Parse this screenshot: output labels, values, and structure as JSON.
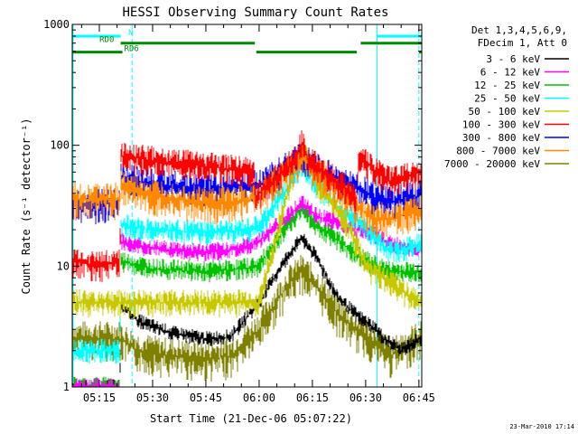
{
  "chart_data": {
    "type": "line",
    "title": "HESSI Observing Summary Count Rates",
    "xlabel": "Start Time (21-Dec-06 05:07:22)",
    "ylabel": "Count Rate (s⁻¹ detector⁻¹)",
    "yscale": "log",
    "ylim": [
      1,
      1000
    ],
    "xlim_minutes_after_0500": [
      7.37,
      105.8
    ],
    "x_ticks": [
      {
        "label": "05:15",
        "t": 15
      },
      {
        "label": "05:30",
        "t": 30
      },
      {
        "label": "05:45",
        "t": 45
      },
      {
        "label": "06:00",
        "t": 60
      },
      {
        "label": "06:15",
        "t": 75
      },
      {
        "label": "06:30",
        "t": 90
      },
      {
        "label": "06:45",
        "t": 105
      }
    ],
    "y_ticks": [
      {
        "label": "1",
        "v": 1
      },
      {
        "label": "10",
        "v": 10
      },
      {
        "label": "100",
        "v": 100
      },
      {
        "label": "1000",
        "v": 1000
      }
    ],
    "legend_header": [
      "Det 1,3,4,5,6,9,",
      "FDecim 1, Att 0"
    ],
    "legend_placement": "right",
    "timestamp": "23-Mar-2010 17:14",
    "flags": [
      {
        "label": "N",
        "color": "#00ffff",
        "segments": [
          [
            7.4,
            21.0
          ],
          [
            93.2,
            105.8
          ]
        ],
        "v": 800
      },
      {
        "label": "RD0",
        "color": "#008800",
        "segments": [
          [
            21.0,
            58.8
          ],
          [
            88.6,
            105.8
          ]
        ],
        "v": 700
      },
      {
        "label": "RD6",
        "color": "#008800",
        "segments": [
          [
            7.4,
            21.5
          ],
          [
            59.2,
            87.5
          ],
          [
            105.0,
            105.8
          ]
        ],
        "v": 590
      }
    ],
    "vlines": [
      {
        "t": 7.6,
        "color": "#00ffff",
        "style": "solid"
      },
      {
        "t": 24.2,
        "color": "#00ffff",
        "style": "dashed"
      },
      {
        "t": 93.2,
        "color": "#00ffff",
        "style": "solid"
      },
      {
        "t": 105.0,
        "color": "#00ffff",
        "style": "dashed"
      }
    ],
    "series": [
      {
        "name": "3 - 6 keV",
        "color": "#000000",
        "values": [
          [
            7.4,
            1.0
          ],
          [
            14,
            1.0
          ],
          [
            20.8,
            1.0
          ],
          [
            21,
            5.0
          ],
          [
            26,
            3.5
          ],
          [
            35,
            2.8
          ],
          [
            45,
            2.5
          ],
          [
            52,
            2.6
          ],
          [
            60,
            5.0
          ],
          [
            68,
            12.0
          ],
          [
            72,
            17.0
          ],
          [
            76,
            12.0
          ],
          [
            82,
            5.5
          ],
          [
            88,
            3.8
          ],
          [
            93,
            3.0
          ],
          [
            95,
            2.5
          ],
          [
            100,
            2.0
          ],
          [
            105,
            2.5
          ]
        ]
      },
      {
        "name": "6 - 12 keV",
        "color": "#ff00ff",
        "values": [
          [
            7.4,
            1.0
          ],
          [
            14,
            1.0
          ],
          [
            20.8,
            1.0
          ],
          [
            21,
            16.0
          ],
          [
            30,
            14.0
          ],
          [
            45,
            13.0
          ],
          [
            55,
            14.0
          ],
          [
            60,
            16.0
          ],
          [
            68,
            26.0
          ],
          [
            72,
            33.0
          ],
          [
            76,
            26.0
          ],
          [
            84,
            22.0
          ],
          [
            88,
            20.0
          ],
          [
            93,
            18.0
          ],
          [
            97,
            15.0
          ],
          [
            105,
            14.0
          ]
        ]
      },
      {
        "name": "12 - 25 keV",
        "color": "#00c000",
        "values": [
          [
            7.4,
            1.0
          ],
          [
            14,
            1.0
          ],
          [
            20.8,
            1.0
          ],
          [
            21,
            11.0
          ],
          [
            30,
            9.5
          ],
          [
            45,
            9.0
          ],
          [
            55,
            9.5
          ],
          [
            60,
            10.0
          ],
          [
            68,
            22.0
          ],
          [
            72,
            30.0
          ],
          [
            76,
            22.0
          ],
          [
            84,
            15.0
          ],
          [
            88,
            12.0
          ],
          [
            93,
            10.0
          ],
          [
            97,
            9.0
          ],
          [
            105,
            9.0
          ]
        ]
      },
      {
        "name": "25 - 50 keV",
        "color": "#00ffff",
        "values": [
          [
            7.4,
            2.0
          ],
          [
            14,
            2.0
          ],
          [
            20.8,
            2.0
          ],
          [
            21,
            22.0
          ],
          [
            30,
            20.0
          ],
          [
            45,
            19.0
          ],
          [
            55,
            19.5
          ],
          [
            60,
            21.0
          ],
          [
            68,
            45.0
          ],
          [
            72,
            70.0
          ],
          [
            76,
            45.0
          ],
          [
            84,
            28.0
          ],
          [
            88,
            24.0
          ],
          [
            93,
            17.0
          ],
          [
            97,
            13.0
          ],
          [
            105,
            15.0
          ]
        ]
      },
      {
        "name": "50 - 100 keV",
        "color": "#c8c800",
        "values": [
          [
            7.4,
            5.0
          ],
          [
            20.8,
            5.0
          ],
          [
            60,
            5.0
          ],
          [
            68,
            40.0
          ],
          [
            72,
            105.0
          ],
          [
            76,
            50.0
          ],
          [
            84,
            25.0
          ],
          [
            90,
            10.0
          ],
          [
            105,
            5.0
          ]
        ]
      },
      {
        "name": "100 - 300 keV",
        "color": "#ff0000",
        "values": [
          [
            7.4,
            11.0
          ],
          [
            14,
            10.0
          ],
          [
            20.8,
            11.0
          ],
          [
            21,
            82.0
          ],
          [
            30,
            75.0
          ],
          [
            45,
            67.0
          ],
          [
            55,
            62.0
          ],
          [
            58.5,
            60.0
          ],
          [
            59,
            37.0
          ],
          [
            65,
            55.0
          ],
          [
            70,
            75.0
          ],
          [
            72,
            105.0
          ],
          [
            74,
            75.0
          ],
          [
            80,
            55.0
          ],
          [
            86,
            40.0
          ],
          [
            87.5,
            36.0
          ],
          [
            88,
            82.0
          ],
          [
            93,
            60.0
          ],
          [
            97,
            50.0
          ],
          [
            105,
            60.0
          ]
        ]
      },
      {
        "name": "300 - 800 keV",
        "color": "#0000ff",
        "values": [
          [
            7.4,
            33.0
          ],
          [
            14,
            32.0
          ],
          [
            20.8,
            33.0
          ],
          [
            21,
            55.0
          ],
          [
            30,
            48.0
          ],
          [
            45,
            43.0
          ],
          [
            55,
            46.0
          ],
          [
            60,
            47.0
          ],
          [
            66,
            60.0
          ],
          [
            72,
            80.0
          ],
          [
            78,
            60.0
          ],
          [
            84,
            47.0
          ],
          [
            88,
            45.0
          ],
          [
            93,
            36.0
          ],
          [
            97,
            34.0
          ],
          [
            105,
            38.0
          ]
        ]
      },
      {
        "name": "800 - 7000 keV",
        "color": "#ff8800",
        "values": [
          [
            7.4,
            36.0
          ],
          [
            14,
            35.0
          ],
          [
            20.8,
            36.0
          ],
          [
            21,
            45.0
          ],
          [
            30,
            38.0
          ],
          [
            45,
            33.0
          ],
          [
            55,
            34.0
          ],
          [
            60,
            37.0
          ],
          [
            66,
            55.0
          ],
          [
            72,
            78.0
          ],
          [
            78,
            55.0
          ],
          [
            84,
            37.0
          ],
          [
            88,
            30.0
          ],
          [
            93,
            25.0
          ],
          [
            97,
            24.0
          ],
          [
            105,
            30.0
          ]
        ]
      },
      {
        "name": "7000 - 20000 keV",
        "color": "#808000",
        "values": [
          [
            7.4,
            2.5
          ],
          [
            14,
            2.5
          ],
          [
            20.8,
            2.5
          ],
          [
            26,
            2.0
          ],
          [
            35,
            1.8
          ],
          [
            45,
            1.7
          ],
          [
            52,
            1.8
          ],
          [
            60,
            3.0
          ],
          [
            68,
            7.0
          ],
          [
            72,
            9.0
          ],
          [
            76,
            7.0
          ],
          [
            82,
            4.0
          ],
          [
            88,
            2.8
          ],
          [
            93,
            2.3
          ],
          [
            97,
            1.8
          ],
          [
            105,
            2.5
          ]
        ]
      }
    ]
  }
}
